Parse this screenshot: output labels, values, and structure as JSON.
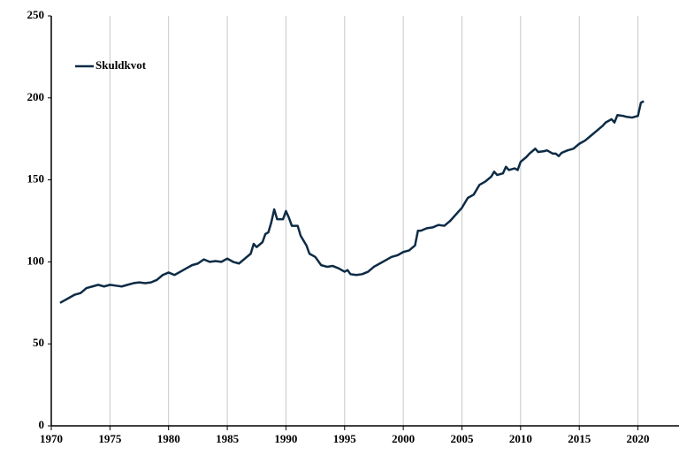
{
  "chart_data": {
    "type": "line",
    "series": [
      {
        "name": "Skuldkvot",
        "color": "#0d2b45",
        "x": [
          1970.75,
          1971,
          1971.5,
          1972,
          1972.5,
          1973,
          1973.5,
          1974,
          1974.5,
          1975,
          1975.5,
          1976,
          1976.5,
          1977,
          1977.5,
          1978,
          1978.5,
          1979,
          1979.5,
          1980,
          1980.5,
          1981,
          1981.5,
          1982,
          1982.5,
          1983,
          1983.5,
          1984,
          1984.5,
          1985,
          1985.5,
          1986,
          1986.5,
          1987,
          1987.25,
          1987.5,
          1988,
          1988.25,
          1988.5,
          1988.75,
          1989,
          1989.25,
          1989.75,
          1990,
          1990.25,
          1990.5,
          1991,
          1991.25,
          1991.75,
          1992,
          1992.5,
          1993,
          1993.5,
          1994,
          1994.5,
          1995,
          1995.25,
          1995.5,
          1996,
          1996.5,
          1997,
          1997.5,
          1998,
          1998.5,
          1999,
          1999.5,
          2000,
          2000.5,
          2001,
          2001.25,
          2001.5,
          2002,
          2002.5,
          2003,
          2003.5,
          2004,
          2004.5,
          2005,
          2005.5,
          2006,
          2006.5,
          2007,
          2007.5,
          2007.75,
          2008,
          2008.5,
          2008.75,
          2009,
          2009.5,
          2009.75,
          2010,
          2010.5,
          2010.75,
          2011,
          2011.25,
          2011.5,
          2012,
          2012.25,
          2012.75,
          2013,
          2013.25,
          2013.5,
          2014,
          2014.5,
          2015,
          2015.5,
          2016,
          2016.5,
          2017,
          2017.25,
          2017.75,
          2018,
          2018.25,
          2018.75,
          2019,
          2019.5,
          2020,
          2020.25,
          2020.5
        ],
        "values": [
          75,
          76,
          78,
          80,
          81,
          84,
          85,
          86,
          85,
          86,
          85.5,
          85,
          86,
          87,
          87.5,
          87,
          87.5,
          89,
          92,
          93.5,
          92,
          94,
          96,
          98,
          99,
          101.5,
          100,
          100.5,
          100,
          102,
          100,
          99,
          102,
          105,
          111,
          109,
          112,
          117,
          118,
          124,
          132,
          126,
          126,
          131,
          127,
          122,
          122,
          116,
          110,
          105,
          103,
          98,
          97,
          97.5,
          96,
          94,
          95,
          92.5,
          92,
          92.5,
          94,
          97,
          99,
          101,
          103,
          104,
          106,
          107,
          110,
          119,
          119,
          120.5,
          121,
          122.5,
          122,
          125,
          129,
          133,
          139,
          141,
          147,
          149,
          152,
          155,
          153,
          154,
          158,
          156,
          157,
          156,
          161,
          164,
          166,
          167.5,
          169,
          167,
          167.5,
          168,
          166,
          166,
          164.5,
          166.5,
          168,
          169,
          172,
          174,
          177,
          180,
          183,
          185,
          187,
          185,
          189.5,
          189,
          188.5,
          188,
          189,
          197,
          198
        ]
      }
    ],
    "xlim": [
      1970,
      2023.5
    ],
    "ylim": [
      0,
      250
    ],
    "xticks": [
      1970,
      1975,
      1980,
      1985,
      1990,
      1995,
      2000,
      2005,
      2010,
      2015,
      2020
    ],
    "yticks": [
      0,
      50,
      100,
      150,
      200,
      250
    ],
    "grid": true,
    "legend": "upper left"
  }
}
